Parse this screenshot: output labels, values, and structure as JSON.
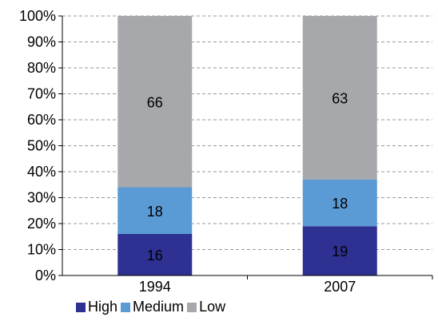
{
  "chart_data": {
    "type": "bar",
    "stacked": true,
    "categories": [
      "1994",
      "2007"
    ],
    "series": [
      {
        "name": "High",
        "values": [
          16,
          19
        ],
        "color": "#2E3192"
      },
      {
        "name": "Medium",
        "values": [
          18,
          18
        ],
        "color": "#5B9BD5"
      },
      {
        "name": "Low",
        "values": [
          66,
          63
        ],
        "color": "#A6A8AB"
      }
    ],
    "y_tick_labels": [
      "0%",
      "10%",
      "20%",
      "30%",
      "40%",
      "50%",
      "60%",
      "70%",
      "80%",
      "90%",
      "100%"
    ],
    "ylim": [
      0,
      100
    ],
    "grid": "dashed horizontal",
    "legend_position": "bottom-left"
  }
}
